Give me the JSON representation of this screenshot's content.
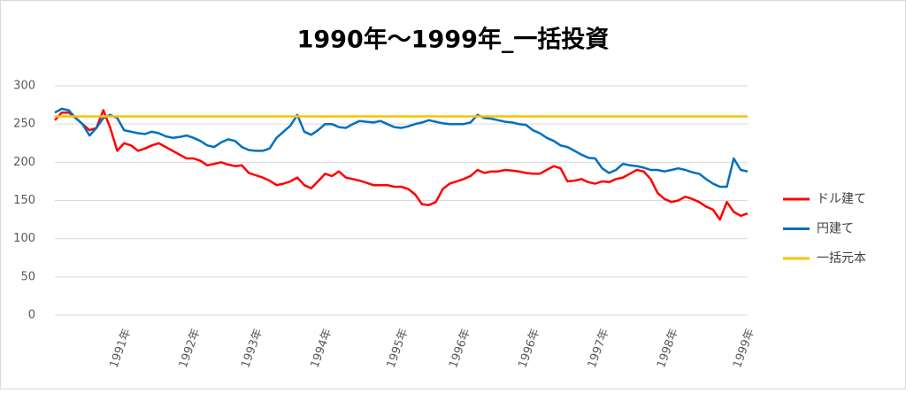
{
  "chart_data": {
    "type": "line",
    "title": "1990年～1999年_一括投資",
    "categories": [
      null,
      null,
      null,
      null,
      null,
      null,
      null,
      null,
      null,
      null,
      "1991年",
      null,
      null,
      null,
      null,
      null,
      null,
      null,
      null,
      null,
      "1992年",
      null,
      null,
      null,
      null,
      null,
      null,
      null,
      null,
      "1993年",
      null,
      null,
      null,
      null,
      null,
      null,
      null,
      null,
      null,
      "1994年",
      null,
      null,
      null,
      null,
      null,
      null,
      null,
      null,
      null,
      null,
      "1995年",
      null,
      null,
      null,
      null,
      null,
      null,
      null,
      null,
      "1996年",
      null,
      null,
      null,
      null,
      null,
      null,
      null,
      null,
      null,
      "1996年",
      null,
      null,
      null,
      null,
      null,
      null,
      null,
      null,
      null,
      "1997年",
      null,
      null,
      null,
      null,
      null,
      null,
      null,
      null,
      null,
      "1998年",
      null,
      null,
      null,
      null,
      null,
      null,
      null,
      null,
      null,
      null,
      "1999年"
    ],
    "series": [
      {
        "name": "ドル建て",
        "color": "#ff0000",
        "values": [
          255,
          265,
          265,
          258,
          250,
          242,
          245,
          268,
          245,
          215,
          225,
          222,
          215,
          218,
          222,
          225,
          220,
          215,
          210,
          205,
          205,
          202,
          196,
          198,
          200,
          197,
          195,
          196,
          186,
          183,
          180,
          176,
          170,
          172,
          175,
          180,
          170,
          166,
          175,
          185,
          182,
          188,
          180,
          178,
          176,
          173,
          170,
          170,
          170,
          168,
          168,
          165,
          158,
          145,
          144,
          148,
          165,
          172,
          175,
          178,
          182,
          190,
          186,
          188,
          188,
          190,
          189,
          188,
          186,
          185,
          185,
          190,
          195,
          192,
          175,
          176,
          178,
          174,
          172,
          175,
          174,
          178,
          180,
          185,
          190,
          188,
          178,
          160,
          152,
          148,
          150,
          155,
          152,
          148,
          142,
          138,
          125,
          148,
          135,
          130,
          133
        ]
      },
      {
        "name": "円建て",
        "color": "#0070c0",
        "values": [
          265,
          270,
          268,
          258,
          250,
          235,
          245,
          258,
          262,
          258,
          242,
          240,
          238,
          237,
          240,
          238,
          234,
          232,
          233,
          235,
          232,
          228,
          222,
          220,
          226,
          230,
          228,
          220,
          216,
          215,
          215,
          218,
          232,
          240,
          248,
          262,
          240,
          236,
          242,
          250,
          250,
          246,
          245,
          250,
          254,
          253,
          252,
          254,
          250,
          246,
          245,
          247,
          250,
          252,
          255,
          253,
          251,
          250,
          250,
          250,
          252,
          262,
          258,
          257,
          255,
          253,
          252,
          250,
          249,
          242,
          238,
          232,
          228,
          222,
          220,
          215,
          210,
          206,
          205,
          192,
          186,
          190,
          198,
          196,
          195,
          193,
          190,
          190,
          188,
          190,
          192,
          190,
          187,
          185,
          178,
          172,
          168,
          168,
          205,
          190,
          188
        ]
      },
      {
        "name": "一括元本",
        "color": "#ffc000",
        "values": [
          260,
          260,
          260,
          260,
          260,
          260,
          260,
          260,
          260,
          260,
          260,
          260,
          260,
          260,
          260,
          260,
          260,
          260,
          260,
          260,
          260,
          260,
          260,
          260,
          260,
          260,
          260,
          260,
          260,
          260,
          260,
          260,
          260,
          260,
          260,
          260,
          260,
          260,
          260,
          260,
          260,
          260,
          260,
          260,
          260,
          260,
          260,
          260,
          260,
          260,
          260,
          260,
          260,
          260,
          260,
          260,
          260,
          260,
          260,
          260,
          260,
          260,
          260,
          260,
          260,
          260,
          260,
          260,
          260,
          260,
          260,
          260,
          260,
          260,
          260,
          260,
          260,
          260,
          260,
          260,
          260,
          260,
          260,
          260,
          260,
          260,
          260,
          260,
          260,
          260,
          260,
          260,
          260,
          260,
          260,
          260,
          260,
          260,
          260,
          260,
          260
        ]
      }
    ],
    "ylim": [
      0,
      300
    ],
    "yticks": [
      0,
      50,
      100,
      150,
      200,
      250,
      300
    ],
    "grid": true,
    "legend": "right"
  }
}
